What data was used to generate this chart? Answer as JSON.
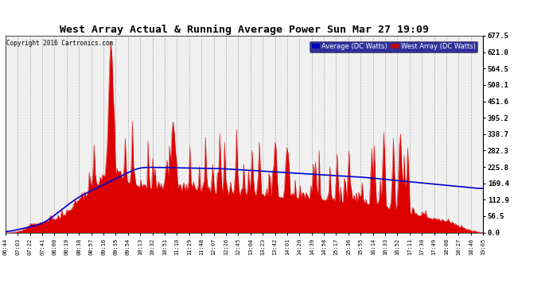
{
  "title": "West Array Actual & Running Average Power Sun Mar 27 19:09",
  "copyright": "Copyright 2016 Cartronics.com",
  "ylabel_right_values": [
    677.5,
    621.0,
    564.5,
    508.1,
    451.6,
    395.2,
    338.7,
    282.3,
    225.8,
    169.4,
    112.9,
    56.5,
    0.0
  ],
  "ymax": 677.5,
  "ymin": 0.0,
  "legend_labels": [
    "Average (DC Watts)",
    "West Array (DC Watts)"
  ],
  "legend_colors_bg": [
    "#0000bb",
    "#cc0000"
  ],
  "bg_color": "#ffffff",
  "plot_bg_color": "#f0f0f0",
  "grid_color": "#aaaaaa",
  "bar_color": "#dd0000",
  "line_color": "#0000cc",
  "x_tick_labels": [
    "06:44",
    "07:03",
    "07:22",
    "07:41",
    "08:00",
    "08:19",
    "08:38",
    "08:57",
    "09:16",
    "09:35",
    "09:54",
    "10:13",
    "10:32",
    "10:51",
    "11:10",
    "11:29",
    "11:48",
    "12:07",
    "12:26",
    "12:45",
    "13:04",
    "13:23",
    "13:42",
    "14:01",
    "14:20",
    "14:39",
    "14:58",
    "15:17",
    "15:36",
    "15:55",
    "16:14",
    "16:33",
    "16:52",
    "17:11",
    "17:30",
    "17:49",
    "18:08",
    "18:27",
    "18:46",
    "19:05"
  ],
  "n_ticks": 40,
  "title_fontsize": 10,
  "copyright_fontsize": 6
}
